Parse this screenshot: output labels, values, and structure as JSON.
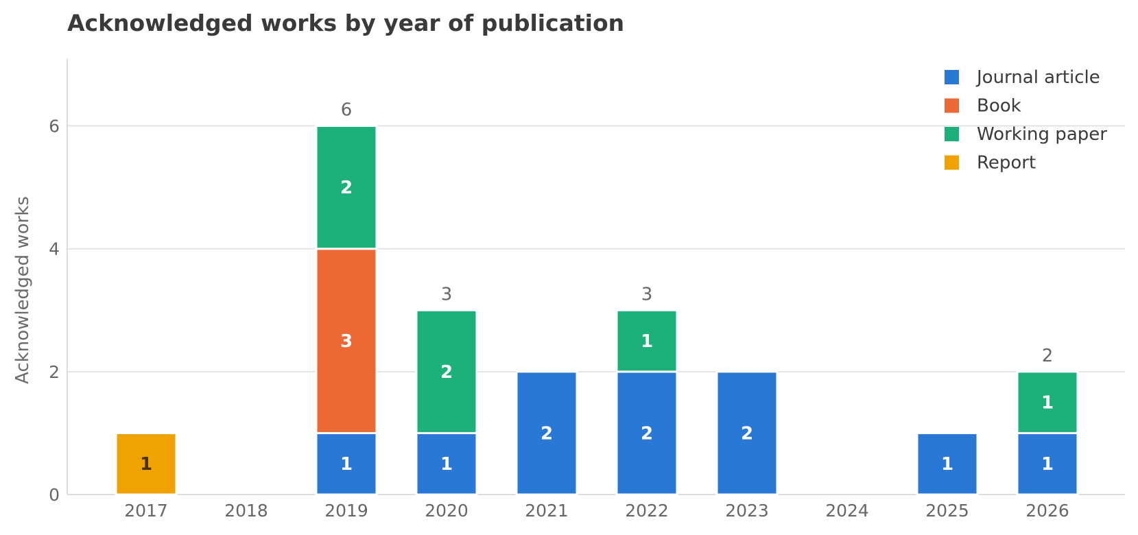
{
  "chart_data": {
    "type": "bar",
    "stacked": true,
    "title": "Acknowledged works by year of publication",
    "xlabel": "",
    "ylabel": "Acknowledged works",
    "ylim": [
      0,
      7.1
    ],
    "yticks": [
      0,
      2,
      4,
      6
    ],
    "grid": "horizontal",
    "legend_position": "top-right",
    "categories": [
      "2017",
      "2018",
      "2019",
      "2020",
      "2021",
      "2022",
      "2023",
      "2024",
      "2025",
      "2026"
    ],
    "series": [
      {
        "name": "Journal article",
        "color": "#2A78D6",
        "label_color": "#ffffff",
        "values": [
          0,
          0,
          1,
          1,
          2,
          2,
          2,
          0,
          1,
          1
        ]
      },
      {
        "name": "Book",
        "color": "#EC6834",
        "label_color": "#ffffff",
        "values": [
          0,
          0,
          3,
          0,
          0,
          0,
          0,
          0,
          0,
          0
        ]
      },
      {
        "name": "Working paper",
        "color": "#1DB17A",
        "label_color": "#ffffff",
        "values": [
          0,
          0,
          2,
          2,
          0,
          1,
          0,
          0,
          0,
          1
        ]
      },
      {
        "name": "Report",
        "color": "#F0A202",
        "label_color": "#4a3300",
        "values": [
          1,
          0,
          0,
          0,
          0,
          0,
          0,
          0,
          0,
          0
        ]
      }
    ],
    "totals": [
      "",
      "",
      "6",
      "3",
      "",
      "3",
      "",
      "",
      "",
      "2"
    ]
  }
}
